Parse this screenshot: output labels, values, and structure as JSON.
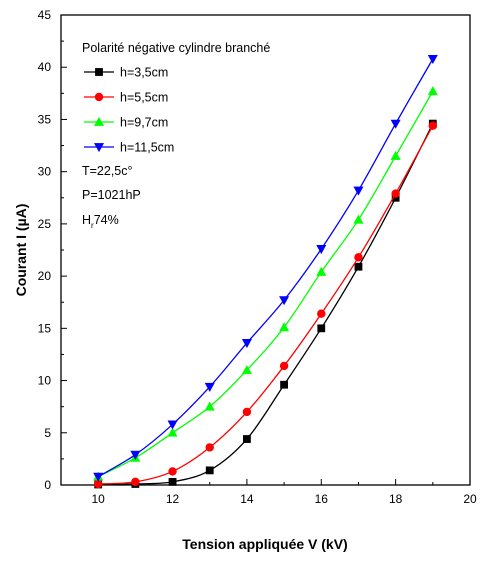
{
  "chart_data": {
    "type": "line",
    "xlabel": "Tension appliquée V (kV)",
    "ylabel": "Courant I (µA)",
    "xlim": [
      9,
      20
    ],
    "ylim": [
      0,
      45
    ],
    "x_ticks": [
      10,
      12,
      14,
      16,
      18,
      20
    ],
    "y_ticks": [
      0,
      5,
      10,
      15,
      20,
      25,
      30,
      35,
      40,
      45
    ],
    "grid": false,
    "legend_placement": "top-left",
    "legend_title": "Polarité négative cylindre branché",
    "series": [
      {
        "name": "h=3,5cm",
        "color": "#000000",
        "marker": "square",
        "x": [
          10,
          11,
          12,
          13,
          14,
          15,
          16,
          17,
          18,
          19
        ],
        "y": [
          0.05,
          0.1,
          0.3,
          1.4,
          4.4,
          9.6,
          15.0,
          20.9,
          27.5,
          34.6
        ]
      },
      {
        "name": "h=5,5cm",
        "color": "#ff0000",
        "marker": "circle",
        "x": [
          10,
          11,
          12,
          13,
          14,
          15,
          16,
          17,
          18,
          19
        ],
        "y": [
          0.1,
          0.3,
          1.3,
          3.6,
          7.0,
          11.4,
          16.4,
          21.8,
          27.9,
          34.4
        ]
      },
      {
        "name": "h=9,7cm",
        "color": "#00ff00",
        "marker": "triangle-up",
        "x": [
          10,
          11,
          12,
          13,
          14,
          15,
          16,
          17,
          18,
          19
        ],
        "y": [
          0.8,
          2.6,
          5.0,
          7.5,
          11.0,
          15.1,
          20.4,
          25.4,
          31.5,
          37.7
        ]
      },
      {
        "name": "h=11,5cm",
        "color": "#0000ff",
        "marker": "triangle-down",
        "x": [
          10,
          11,
          12,
          13,
          14,
          15,
          16,
          17,
          18,
          19
        ],
        "y": [
          0.8,
          2.9,
          5.8,
          9.4,
          13.6,
          17.7,
          22.6,
          28.2,
          34.6,
          40.8
        ]
      }
    ],
    "annotations": [
      "T=22,5c°",
      "P=1021hP",
      "74%"
    ]
  }
}
